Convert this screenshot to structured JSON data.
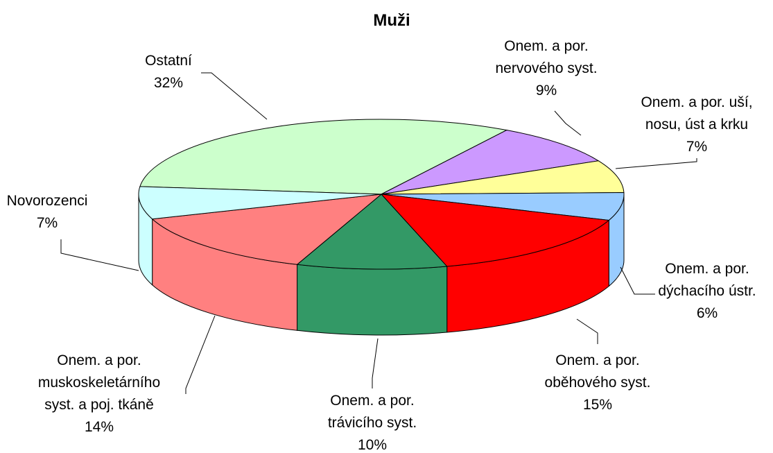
{
  "chart_data": {
    "type": "pie3d",
    "title": "Muži",
    "categories": [
      "Ostatní",
      "Onem. a por.\nnervového syst.",
      "Onem. a por. uší,\nnosu, úst a krku",
      "Onem. a por.\ndýchacího ústr.",
      "Onem. a por.\noběhového syst.",
      "Onem. a por.\ntrávicího syst.",
      "Onem. a por.\nmuskoskeletárního\nsyst. a poj. tkáně",
      "Novorozenci"
    ],
    "values": [
      32,
      9,
      7,
      6,
      15,
      10,
      14,
      7
    ],
    "value_labels": [
      "32%",
      "9%",
      "7%",
      "6%",
      "15%",
      "10%",
      "14%",
      "7%"
    ],
    "colors": [
      "#ccffcc",
      "#cc99ff",
      "#ffff99",
      "#99ccff",
      "#ff0000",
      "#339966",
      "#ff8080",
      "#ccffff"
    ]
  }
}
